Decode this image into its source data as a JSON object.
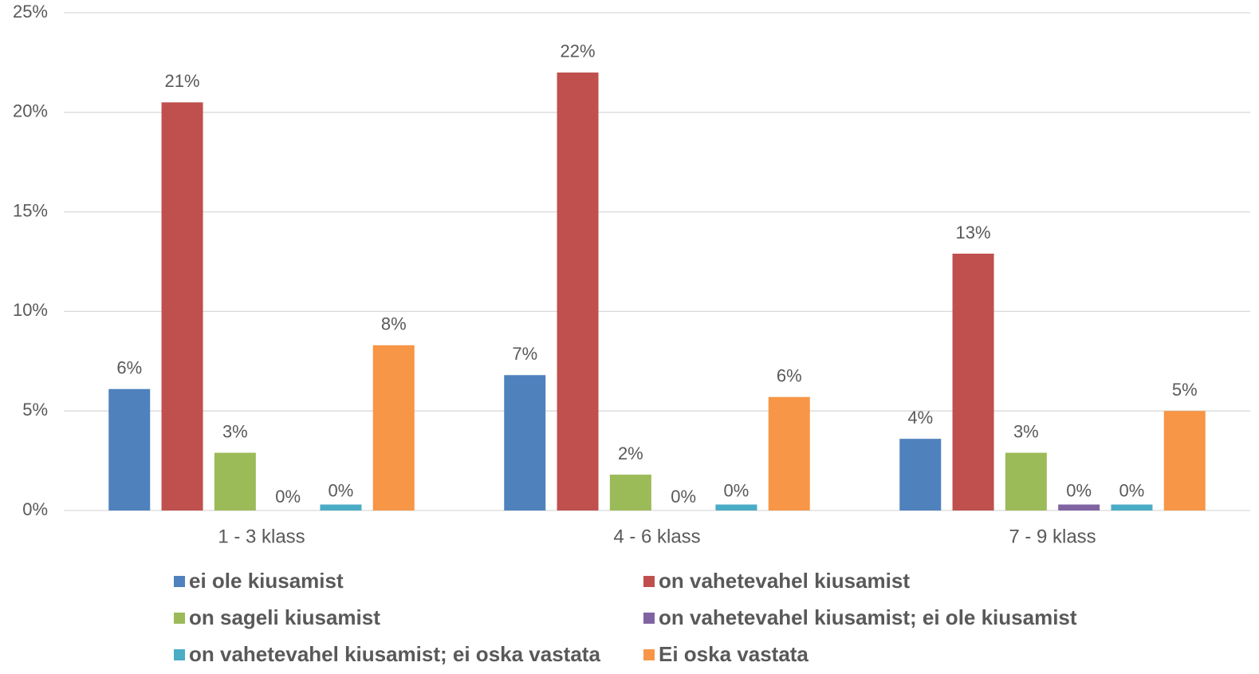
{
  "chart_data": {
    "type": "bar",
    "categories": [
      "1 - 3 klass",
      "4 - 6 klass",
      "7 - 9 klass"
    ],
    "series": [
      {
        "name": "ei ole kiusamist",
        "color": "#4f81bd",
        "values": [
          6.1,
          6.8,
          3.6
        ],
        "value_labels": [
          "6%",
          "7%",
          "4%"
        ]
      },
      {
        "name": "on vahetevahel kiusamist",
        "color": "#c0504d",
        "values": [
          20.5,
          22.0,
          12.9
        ],
        "value_labels": [
          "21%",
          "22%",
          "13%"
        ]
      },
      {
        "name": "on sageli kiusamist",
        "color": "#9bbb59",
        "values": [
          2.9,
          1.8,
          2.9
        ],
        "value_labels": [
          "3%",
          "2%",
          "3%"
        ]
      },
      {
        "name": "on vahetevahel kiusamist; ei ole kiusamist",
        "color": "#8064a2",
        "values": [
          0,
          0,
          0.3
        ],
        "value_labels": [
          "0%",
          "0%",
          "0%"
        ]
      },
      {
        "name": "on vahetevahel kiusamist; ei oska vastata",
        "color": "#4bacc6",
        "values": [
          0.3,
          0.3,
          0.3
        ],
        "value_labels": [
          "0%",
          "0%",
          "0%"
        ]
      },
      {
        "name": "Ei oska vastata",
        "color": "#f79646",
        "values": [
          8.3,
          5.7,
          5.0
        ],
        "value_labels": [
          "8%",
          "6%",
          "5%"
        ]
      }
    ],
    "ylim": [
      0,
      25
    ],
    "yticks": [
      {
        "value": 0,
        "label": "0%"
      },
      {
        "value": 5,
        "label": "5%"
      },
      {
        "value": 10,
        "label": "10%"
      },
      {
        "value": 15,
        "label": "15%"
      },
      {
        "value": 20,
        "label": "20%"
      },
      {
        "value": 25,
        "label": "25%"
      }
    ],
    "grid": true,
    "legend": "bottom"
  }
}
